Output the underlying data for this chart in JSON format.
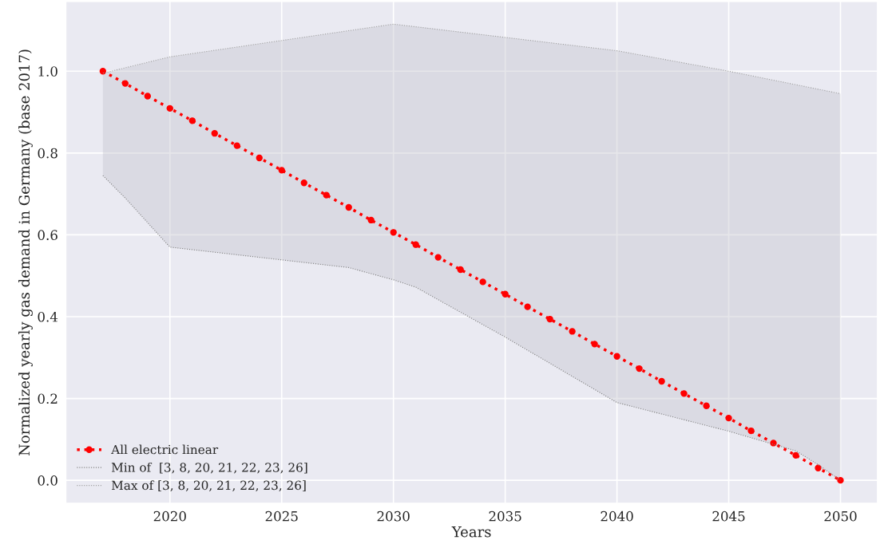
{
  "chart_data": {
    "type": "line",
    "xlabel": "Years",
    "ylabel": "Normalized yearly gas demand in Germany (base 2017)",
    "xlim": [
      2015.35,
      2051.65
    ],
    "xticks": [
      2020,
      2025,
      2030,
      2035,
      2040,
      2045,
      2050
    ],
    "ylim": [
      -0.056,
      1.17
    ],
    "yticks": [
      {
        "value": 0,
        "label": "0.0"
      },
      0.2,
      0.4,
      0.6,
      0.8,
      {
        "value": 1,
        "label": "1.0"
      }
    ],
    "grid": true,
    "legend": "bottom left",
    "series": [
      {
        "name": "All electric linear",
        "color": "#ff0000",
        "marker": "circle",
        "line_style": "dotted",
        "x": [
          2017,
          2018,
          2019,
          2020,
          2021,
          2022,
          2023,
          2024,
          2025,
          2026,
          2027,
          2028,
          2029,
          2030,
          2031,
          2032,
          2033,
          2034,
          2035,
          2036,
          2037,
          2038,
          2039,
          2040,
          2041,
          2042,
          2043,
          2044,
          2045,
          2046,
          2047,
          2048,
          2049,
          2050
        ],
        "values": [
          1.0,
          0.97,
          0.939,
          0.909,
          0.879,
          0.848,
          0.818,
          0.788,
          0.758,
          0.727,
          0.697,
          0.667,
          0.636,
          0.606,
          0.576,
          0.545,
          0.515,
          0.485,
          0.455,
          0.424,
          0.394,
          0.364,
          0.333,
          0.303,
          0.273,
          0.242,
          0.212,
          0.182,
          0.152,
          0.121,
          0.091,
          0.061,
          0.03,
          0.0
        ]
      },
      {
        "name": "Min of  [3, 8, 20, 21, 22, 23, 26]",
        "color": "#808080",
        "marker": "none",
        "line_style": "dotted",
        "x": [
          2017,
          2018,
          2020,
          2028,
          2030,
          2031,
          2035,
          2040,
          2045,
          2048,
          2049,
          2050
        ],
        "values": [
          0.745,
          0.69,
          0.57,
          0.52,
          0.49,
          0.472,
          0.35,
          0.19,
          0.12,
          0.072,
          0.038,
          0.0
        ],
        "lower": [
          0.745,
          0.69,
          0.57,
          0.52,
          0.49,
          0.472,
          0.35,
          0.19,
          0.12,
          0.072,
          0.038,
          0.0
        ],
        "upper": [
          0.995,
          1.008,
          1.035,
          1.099,
          1.115,
          1.109,
          1.083,
          1.05,
          1.0,
          0.967,
          0.956,
          0.945
        ]
      },
      {
        "name": "Max of [3, 8, 20, 21, 22, 23, 26]",
        "color": "#a0a0a0",
        "marker": "none",
        "line_style": "dotted",
        "x": [
          2017,
          2020,
          2030,
          2040,
          2045,
          2050
        ],
        "values": [
          0.995,
          1.035,
          1.115,
          1.05,
          1.0,
          0.945
        ]
      }
    ]
  }
}
